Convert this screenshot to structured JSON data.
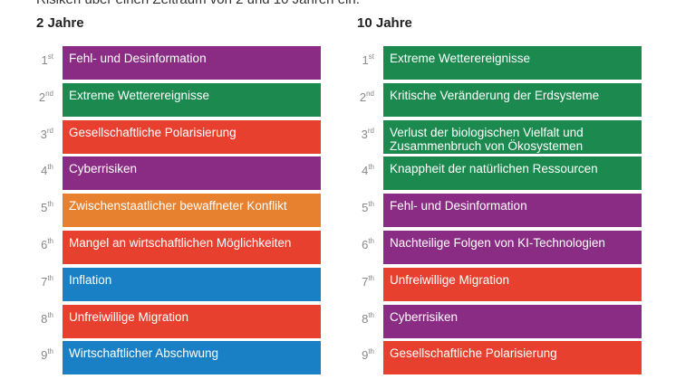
{
  "intro": "Risiken über einen Zeitraum von 2 und 10 Jahren ein.",
  "columns": [
    {
      "title": "2 Jahre",
      "items": [
        {
          "num": "1",
          "suffix": "st",
          "label": "Fehl- und Desinformation",
          "color": "#8a2c83"
        },
        {
          "num": "2",
          "suffix": "nd",
          "label": "Extreme Wetterereignisse",
          "color": "#1c8a4e"
        },
        {
          "num": "3",
          "suffix": "rd",
          "label": "Gesellschaftliche Polarisierung",
          "color": "#e8402f"
        },
        {
          "num": "4",
          "suffix": "th",
          "label": "Cyberrisiken",
          "color": "#8a2c83"
        },
        {
          "num": "5",
          "suffix": "th",
          "label": "Zwischenstaatlicher bewaffneter Konflikt",
          "color": "#e8812f"
        },
        {
          "num": "6",
          "suffix": "th",
          "label": "Mangel an wirtschaftlichen Möglichkeiten",
          "color": "#e8402f"
        },
        {
          "num": "7",
          "suffix": "th",
          "label": "Inflation",
          "color": "#1a80c6"
        },
        {
          "num": "8",
          "suffix": "th",
          "label": "Unfreiwillige Migration",
          "color": "#e8402f"
        },
        {
          "num": "9",
          "suffix": "th",
          "label": "Wirtschaftlicher Abschwung",
          "color": "#1a80c6"
        }
      ]
    },
    {
      "title": "10 Jahre",
      "items": [
        {
          "num": "1",
          "suffix": "st",
          "label": "Extreme Wetterereignisse",
          "color": "#1c8a4e"
        },
        {
          "num": "2",
          "suffix": "nd",
          "label": "Kritische Veränderung der Erdsysteme",
          "color": "#1c8a4e"
        },
        {
          "num": "3",
          "suffix": "rd",
          "label": "Verlust der biologischen Vielfalt und Zusammenbruch von Ökosystemen",
          "color": "#1c8a4e"
        },
        {
          "num": "4",
          "suffix": "th",
          "label": "Knappheit der natürlichen Ressourcen",
          "color": "#1c8a4e"
        },
        {
          "num": "5",
          "suffix": "th",
          "label": "Fehl- und Desinformation",
          "color": "#8a2c83"
        },
        {
          "num": "6",
          "suffix": "th",
          "label": "Nachteilige Folgen von KI-Technologien",
          "color": "#8a2c83"
        },
        {
          "num": "7",
          "suffix": "th",
          "label": "Unfreiwillige Migration",
          "color": "#e8402f"
        },
        {
          "num": "8",
          "suffix": "th",
          "label": "Cyberrisiken",
          "color": "#8a2c83"
        },
        {
          "num": "9",
          "suffix": "th",
          "label": "Gesellschaftliche Polarisierung",
          "color": "#e8402f"
        }
      ]
    }
  ]
}
